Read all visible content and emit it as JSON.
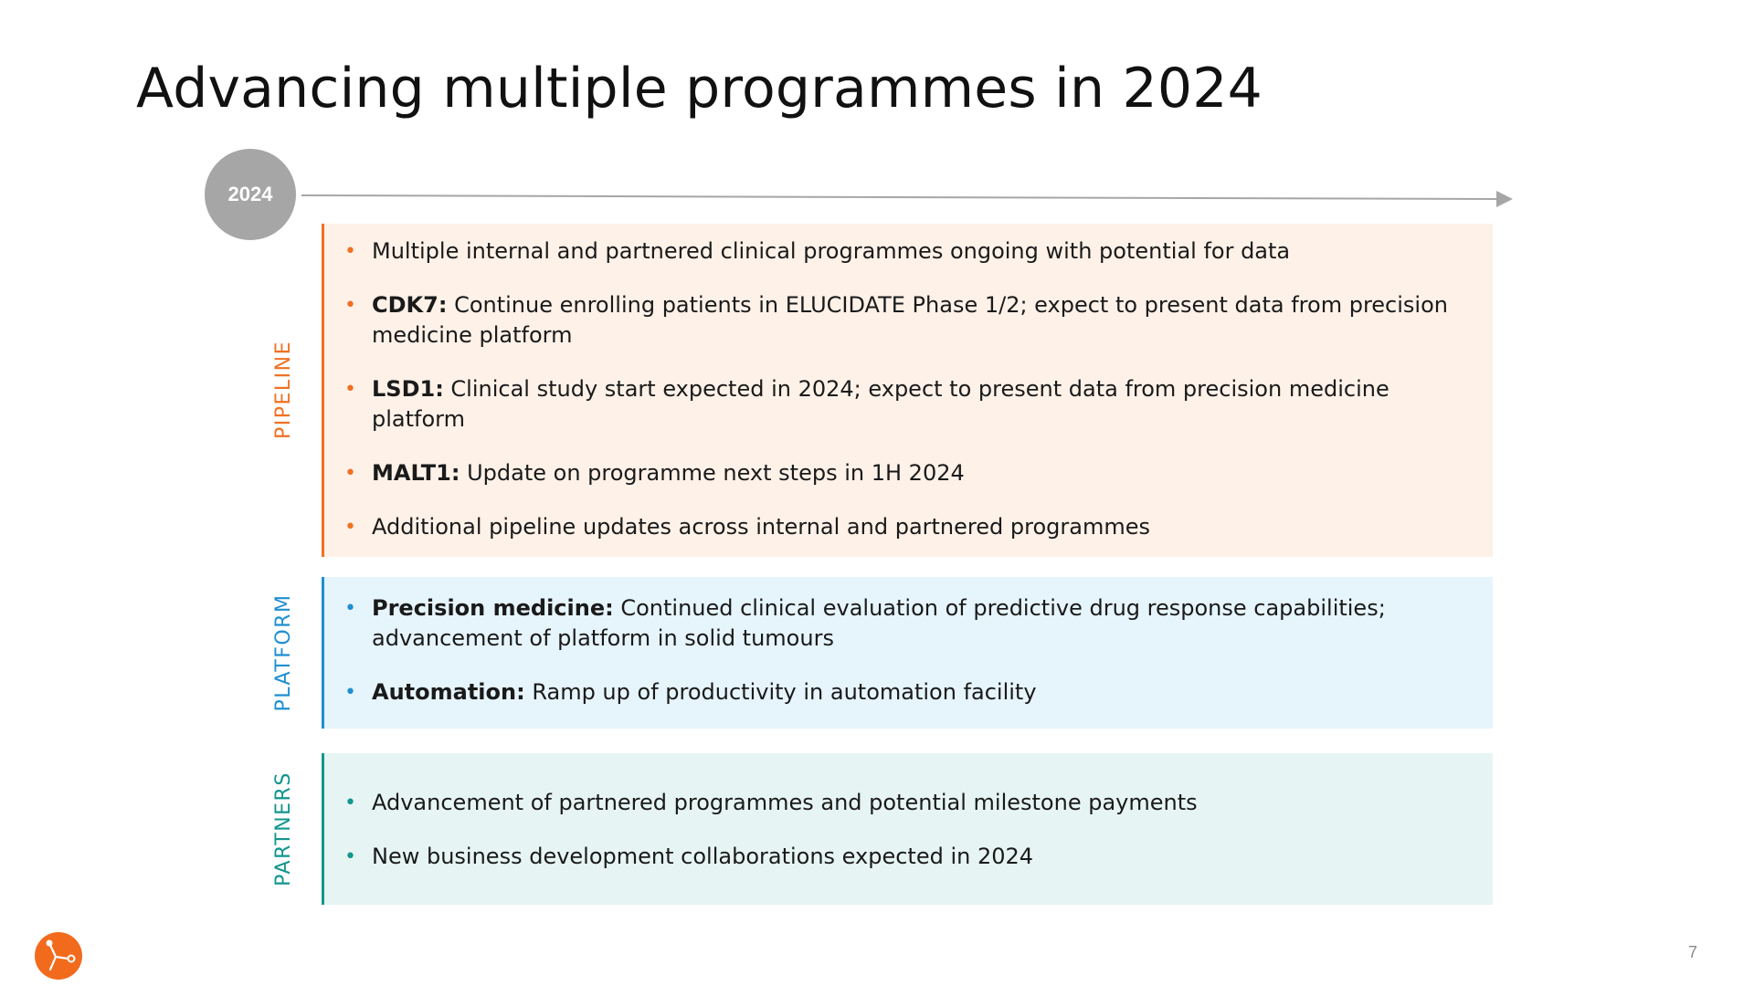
{
  "title": "Advancing multiple programmes in 2024",
  "timeline": {
    "year": "2024"
  },
  "sections": [
    {
      "key": "pipeline",
      "label": "PIPELINE",
      "color": "#f07122",
      "bullets": [
        {
          "bold": "",
          "text": "Multiple internal and partnered clinical programmes ongoing with potential for data"
        },
        {
          "bold": "CDK7:",
          "text": " Continue enrolling patients in ELUCIDATE Phase 1/2; expect to present data from precision medicine platform"
        },
        {
          "bold": "LSD1:",
          "text": " Clinical study start expected in 2024; expect to present data from precision medicine platform"
        },
        {
          "bold": "MALT1:",
          "text": " Update on programme next steps in 1H 2024"
        },
        {
          "bold": "",
          "text": "Additional pipeline updates across internal and partnered programmes"
        }
      ]
    },
    {
      "key": "platform",
      "label": "PLATFORM",
      "color": "#1f8fd0",
      "bullets": [
        {
          "bold": "Precision medicine:",
          "text": " Continued clinical evaluation of predictive drug response capabilities; advancement of platform in solid tumours"
        },
        {
          "bold": "Automation:",
          "text": " Ramp up of productivity in automation facility"
        }
      ]
    },
    {
      "key": "partners",
      "label": "PARTNERS",
      "color": "#12968f",
      "bullets": [
        {
          "bold": "",
          "text": "Advancement of partnered programmes and potential milestone payments"
        },
        {
          "bold": "",
          "text": "New business development collaborations expected in 2024"
        }
      ]
    }
  ],
  "footer": {
    "page_number": "7",
    "logo_icon": "molecule-logo-icon",
    "logo_color": "#f26b1d"
  }
}
